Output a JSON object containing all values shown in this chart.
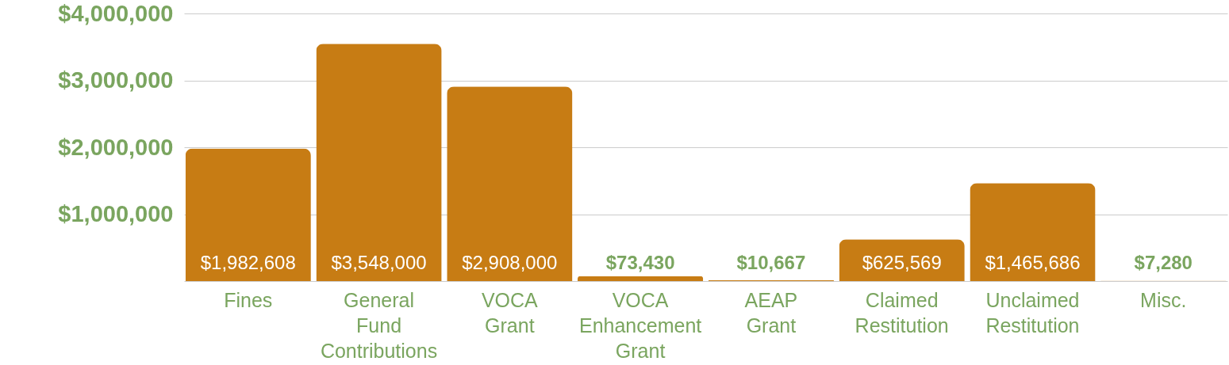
{
  "chart_data": {
    "type": "bar",
    "categories": [
      "Fines",
      "General Fund Contributions",
      "VOCA Grant",
      "VOCA Enhancement Grant",
      "AEAP Grant",
      "Claimed Restitution",
      "Unclaimed Restitution",
      "Misc."
    ],
    "values": [
      1982608,
      3548000,
      2908000,
      73430,
      10667,
      625569,
      1465686,
      7280
    ],
    "color": "#c77c14",
    "ylim": [
      0,
      4000000
    ],
    "yticks": [
      {
        "value": 0,
        "label": null
      },
      {
        "value": 1000000,
        "label": "$1,000,000"
      },
      {
        "value": 2000000,
        "label": "$2,000,000"
      },
      {
        "value": 3000000,
        "label": "$3,000,000"
      },
      {
        "value": 4000000,
        "label": "$4,000,000"
      }
    ],
    "value_labels": [
      "$1,982,608",
      "$3,548,000",
      "$2,908,000",
      "$73,430",
      "$10,667",
      "$625,569",
      "$1,465,686",
      "$7,280"
    ],
    "grid": "y"
  }
}
